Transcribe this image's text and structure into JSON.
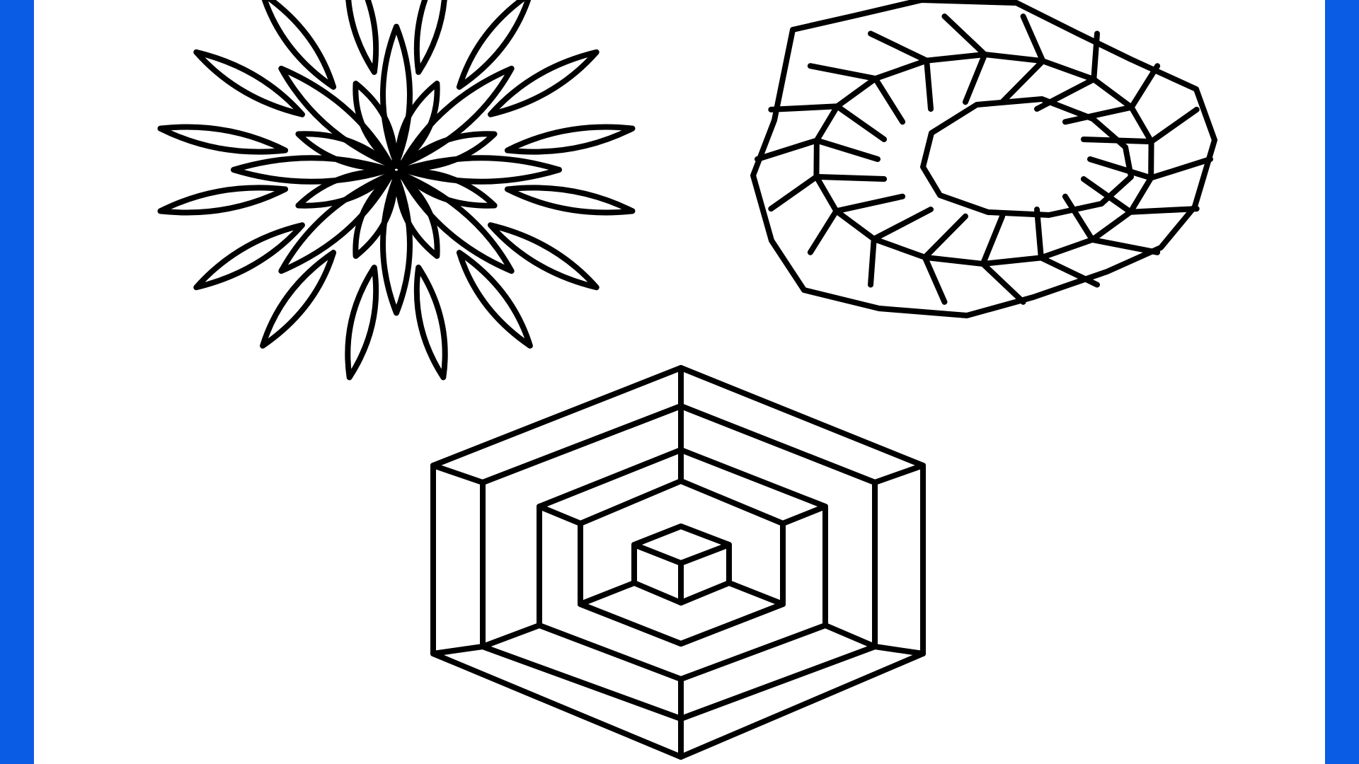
{
  "colors": {
    "frame": "#0b5ce5",
    "background": "#ffffff",
    "line": "#000000"
  },
  "figures": [
    {
      "name": "flower",
      "description_icon": "petal-flower-icon"
    },
    {
      "name": "rhombus-torus",
      "description_icon": "rhombus-ring-icon"
    },
    {
      "name": "nested-hexagon-cube",
      "description_icon": "nested-cube-icon"
    }
  ]
}
